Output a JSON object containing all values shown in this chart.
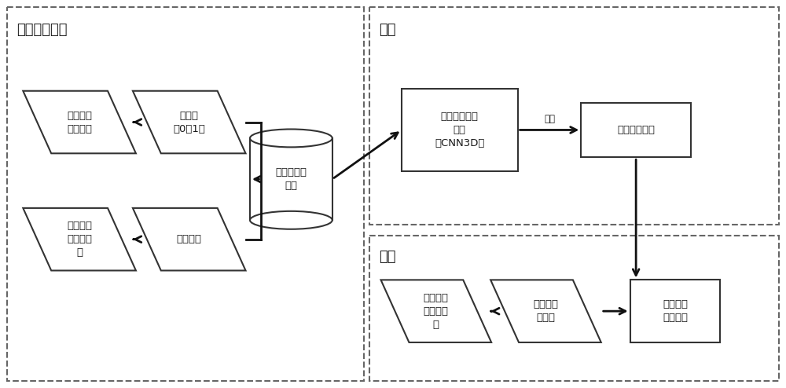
{
  "bg_color": "#ffffff",
  "border_color": "#666666",
  "box_edge": "#333333",
  "arrow_color": "#111111",
  "text_color": "#1a1a1a",
  "title_fontsize": 13,
  "label_fontsize": 9.5,
  "small_fontsize": 8.5,
  "section1_title": "生成训练样本",
  "section2_title": "训练",
  "section3_title": "预报",
  "box1_label": "雷暴现象\n历史观测",
  "box2_label": "标记值\n（0或1）",
  "box3_label": "标记的训练\n样本",
  "box4_label": "雷达与卫\n星历史观\n测",
  "box5_label": "预报特征",
  "box6_label": "三维卷积神经\n网络\n（CNN3D）",
  "box7_label": "生成预报模型",
  "box8_label": "雷达与卫\n星实时观\n测",
  "box9_label": "预测数据\n归一化",
  "box10_label": "雷暴概率\n预报产品",
  "train_label": "训练"
}
